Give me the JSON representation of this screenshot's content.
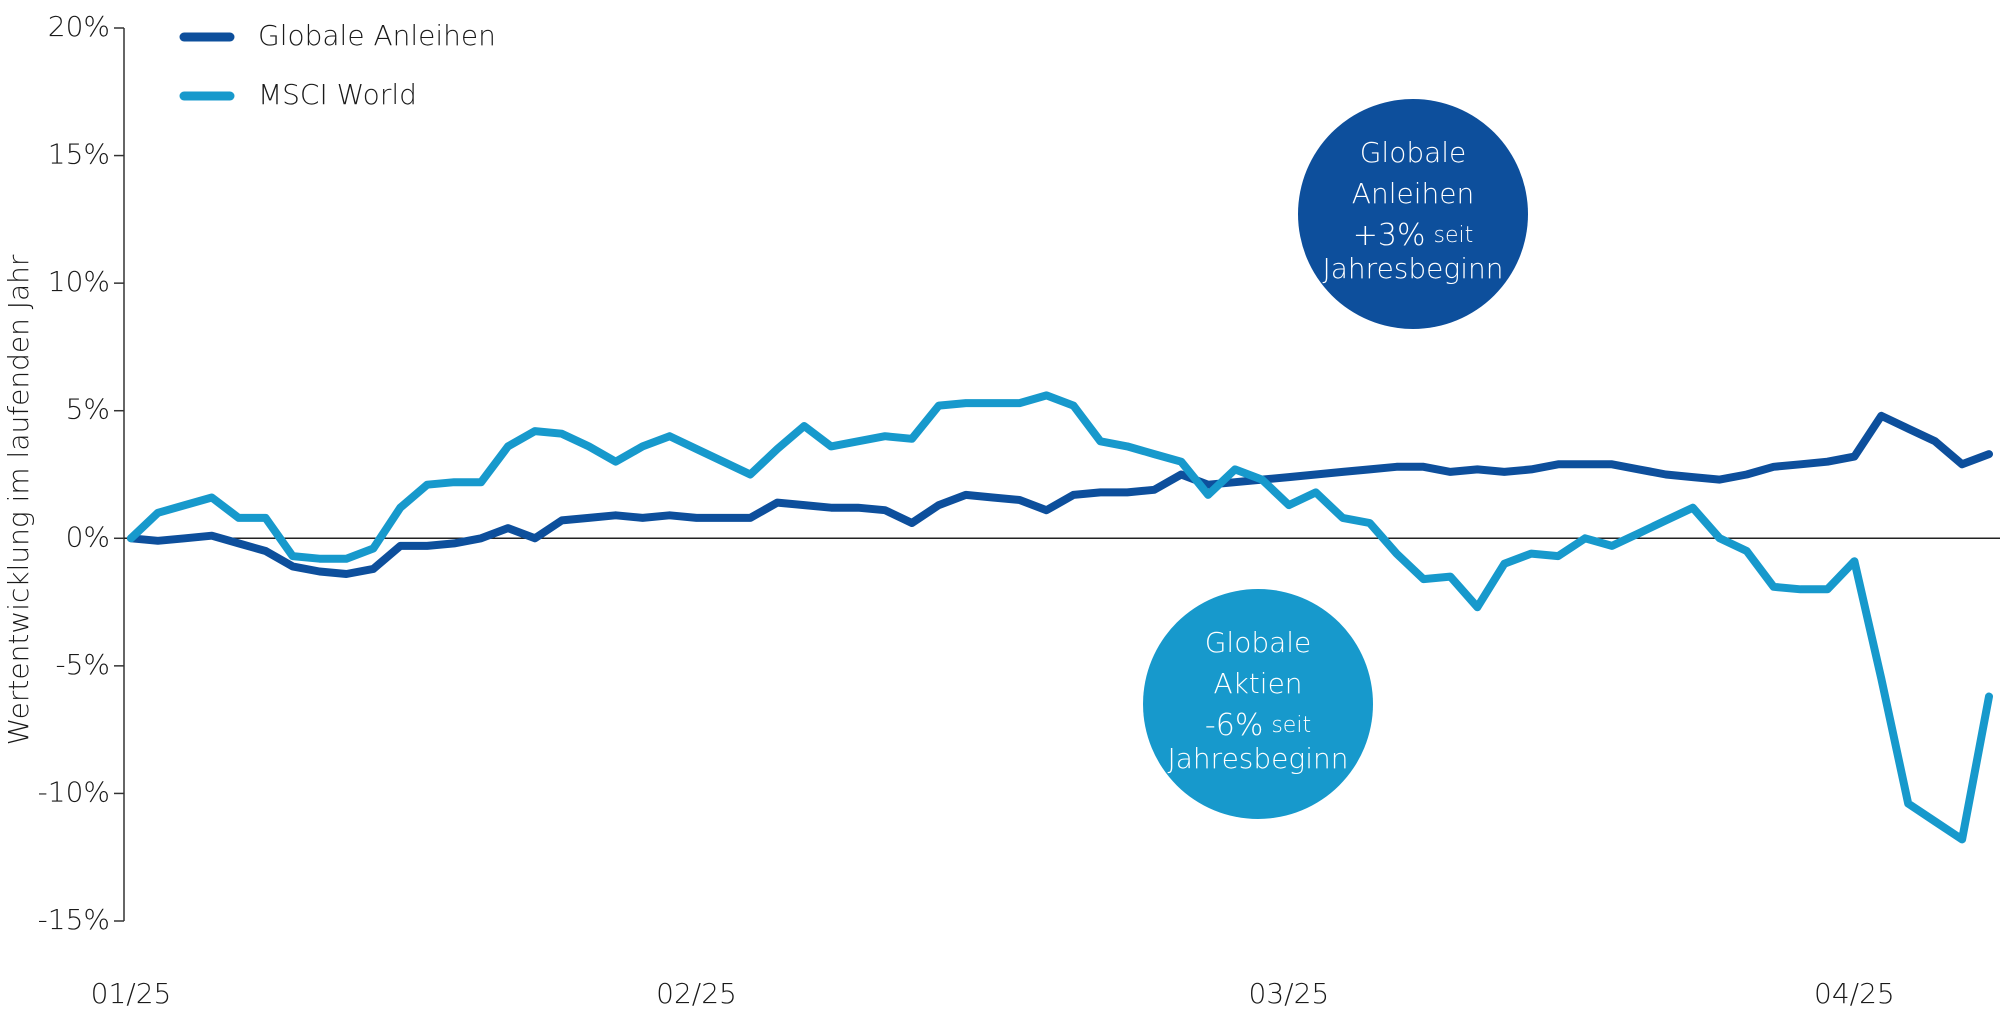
{
  "chart_data": {
    "type": "line",
    "y_label": "Wertentwicklung im laufenden Jahr",
    "categories": [
      "01/25",
      null,
      null,
      null,
      null,
      null,
      null,
      null,
      null,
      null,
      null,
      null,
      null,
      null,
      null,
      null,
      null,
      null,
      null,
      null,
      null,
      "02/25",
      null,
      null,
      null,
      null,
      null,
      null,
      null,
      null,
      null,
      null,
      null,
      null,
      null,
      null,
      null,
      null,
      null,
      null,
      null,
      null,
      null,
      "03/25",
      null,
      null,
      null,
      null,
      null,
      null,
      null,
      null,
      null,
      null,
      null,
      null,
      null,
      null,
      null,
      null,
      null,
      null,
      null,
      null,
      "04/25",
      null,
      null,
      null,
      null,
      null
    ],
    "series": [
      {
        "name": "Globale Anleihen",
        "color": "#0d4f9c",
        "values": [
          0,
          -0.1,
          0,
          0.1,
          -0.2,
          -0.5,
          -1.1,
          -1.3,
          -1.4,
          -1.2,
          -0.3,
          -0.3,
          -0.2,
          0,
          0.4,
          0,
          0.7,
          0.8,
          0.9,
          0.8,
          0.9,
          0.8,
          0.8,
          0.8,
          1.4,
          1.3,
          1.2,
          1.2,
          1.1,
          0.6,
          1.3,
          1.7,
          1.6,
          1.5,
          1.1,
          1.7,
          1.8,
          1.8,
          1.9,
          2.5,
          2.1,
          2.2,
          2.3,
          2.4,
          2.5,
          2.6,
          2.7,
          2.8,
          2.8,
          2.6,
          2.7,
          2.6,
          2.7,
          2.9,
          2.9,
          2.9,
          2.7,
          2.5,
          2.4,
          2.3,
          2.5,
          2.8,
          2.9,
          3.0,
          3.2,
          4.8,
          4.3,
          3.8,
          2.9,
          3.3
        ]
      },
      {
        "name": "MSCI World",
        "color": "#1799cc",
        "values": [
          0,
          1.0,
          1.3,
          1.6,
          0.8,
          0.8,
          -0.7,
          -0.8,
          -0.8,
          -0.4,
          1.2,
          2.1,
          2.2,
          2.2,
          3.6,
          4.2,
          4.1,
          3.6,
          3.0,
          3.6,
          4.0,
          3.5,
          3.0,
          2.5,
          3.5,
          4.4,
          3.6,
          3.8,
          4.0,
          3.9,
          5.2,
          5.3,
          5.3,
          5.3,
          5.6,
          5.2,
          3.8,
          3.6,
          3.3,
          3.0,
          1.7,
          2.7,
          2.3,
          1.3,
          1.8,
          0.8,
          0.6,
          -0.6,
          -1.6,
          -1.5,
          -2.7,
          -1.0,
          -0.6,
          -0.7,
          0,
          -0.3,
          0.2,
          0.7,
          1.2,
          0,
          -0.5,
          -1.9,
          -2.0,
          -2.0,
          -0.9,
          -5.5,
          -10.4,
          -11.1,
          -11.8,
          -6.2
        ]
      }
    ],
    "ylim": [
      -15,
      20
    ],
    "yticks": [
      {
        "value": -15,
        "label": "-15%"
      },
      {
        "value": -10,
        "label": "-10%"
      },
      {
        "value": -5,
        "label": "-5%"
      },
      {
        "value": 0,
        "label": "0%"
      },
      {
        "value": 5,
        "label": "5%"
      },
      {
        "value": 10,
        "label": "10%"
      },
      {
        "value": 15,
        "label": "15%"
      },
      {
        "value": 20,
        "label": "20%"
      }
    ],
    "zero_line": true,
    "legend": "top-left",
    "annotations": [
      {
        "lines": [
          "Globale",
          "Anleihen"
        ],
        "highlight": "+3%",
        "suffix": "seit",
        "note": "Jahresbeginn",
        "color": "#0d4f9c"
      },
      {
        "lines": [
          "Globale",
          "Aktien"
        ],
        "highlight": "-6%",
        "suffix": "seit",
        "note": "Jahresbeginn",
        "color": "#1799cc"
      }
    ]
  }
}
